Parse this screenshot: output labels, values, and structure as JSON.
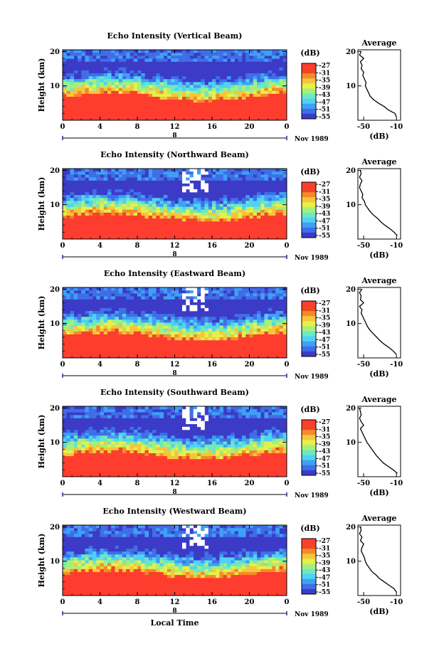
{
  "figure": {
    "xlabel": "Local Time",
    "date_label": "Nov 1989",
    "ylabel": "Height (km)",
    "colorbar_unit": "(dB)",
    "average_title": "Average",
    "average_xlabel": "(dB)",
    "strip_label": "8",
    "colormap": [
      "#3b3bc8",
      "#3f6ee6",
      "#3fa0f5",
      "#4fd2f5",
      "#6ee8c0",
      "#a6f07a",
      "#e6f04a",
      "#f5c63b",
      "#f58a2a",
      "#f04526",
      "#ff3d2e"
    ]
  },
  "chart_data": [
    {
      "type": "heatmap",
      "title": "Echo Intensity (Vertical Beam)",
      "x_ticks": [
        "0",
        "4",
        "8",
        "12",
        "16",
        "20",
        "0"
      ],
      "xlim": [
        0,
        24
      ],
      "y_ticks": [
        "20",
        "10"
      ],
      "ylim": [
        0,
        20.5
      ],
      "colorbar_ticks": [
        "-27",
        "-31",
        "-35",
        "-39",
        "-43",
        "-47",
        "-51",
        "-55"
      ],
      "colorbar_range": [
        -55,
        -27
      ],
      "avg_ticks": [
        "-50",
        "-10"
      ],
      "avg_xlim": [
        -57,
        -5
      ],
      "profile": {
        "heights": [
          1,
          2,
          3,
          4,
          5,
          6,
          7,
          8,
          9,
          10,
          11,
          12,
          13,
          14,
          15,
          16,
          17,
          18,
          19,
          20
        ],
        "values": [
          -10,
          -12,
          -20,
          -25,
          -32,
          -38,
          -42,
          -44,
          -46,
          -48,
          -47,
          -49,
          -51,
          -50,
          -53,
          -52,
          -54,
          -50,
          -55,
          -53
        ]
      }
    },
    {
      "type": "heatmap",
      "title": "Echo Intensity (Northward Beam)",
      "x_ticks": [
        "0",
        "4",
        "8",
        "12",
        "16",
        "20",
        "0"
      ],
      "xlim": [
        0,
        24
      ],
      "y_ticks": [
        "20",
        "10"
      ],
      "ylim": [
        0,
        20.5
      ],
      "colorbar_ticks": [
        "-27",
        "-31",
        "-35",
        "-39",
        "-43",
        "-47",
        "-51",
        "-55"
      ],
      "colorbar_range": [
        -55,
        -27
      ],
      "avg_ticks": [
        "-50",
        "-10"
      ],
      "avg_xlim": [
        -57,
        -5
      ],
      "profile": {
        "heights": [
          1,
          2,
          3,
          4,
          5,
          6,
          7,
          8,
          9,
          10,
          11,
          12,
          13,
          14,
          15,
          16,
          17,
          18,
          19,
          20
        ],
        "values": [
          -9,
          -13,
          -18,
          -24,
          -29,
          -33,
          -38,
          -42,
          -45,
          -48,
          -49,
          -52,
          -51,
          -53,
          -55,
          -54,
          -52,
          -55,
          -53,
          -54
        ]
      }
    },
    {
      "type": "heatmap",
      "title": "Echo Intensity (Eastward Beam)",
      "x_ticks": [
        "0",
        "4",
        "8",
        "12",
        "16",
        "20",
        "0"
      ],
      "xlim": [
        0,
        24
      ],
      "y_ticks": [
        "20",
        "10"
      ],
      "ylim": [
        0,
        20.5
      ],
      "colorbar_ticks": [
        "-27",
        "-31",
        "-35",
        "-39",
        "-43",
        "-47",
        "-51",
        "-55"
      ],
      "colorbar_range": [
        -55,
        -27
      ],
      "avg_ticks": [
        "-50",
        "-10"
      ],
      "avg_xlim": [
        -57,
        -5
      ],
      "profile": {
        "heights": [
          1,
          2,
          3,
          4,
          5,
          6,
          7,
          8,
          9,
          10,
          11,
          12,
          13,
          14,
          15,
          16,
          17,
          18,
          19,
          20
        ],
        "values": [
          -10,
          -14,
          -19,
          -25,
          -30,
          -34,
          -38,
          -42,
          -45,
          -47,
          -49,
          -51,
          -53,
          -52,
          -55,
          -50,
          -54,
          -53,
          -55,
          -52
        ]
      }
    },
    {
      "type": "heatmap",
      "title": "Echo Intensity (Southward Beam)",
      "x_ticks": [
        "0",
        "4",
        "8",
        "12",
        "16",
        "20",
        "0"
      ],
      "xlim": [
        0,
        24
      ],
      "y_ticks": [
        "20",
        "10"
      ],
      "ylim": [
        0,
        20.5
      ],
      "colorbar_ticks": [
        "-27",
        "-31",
        "-35",
        "-39",
        "-43",
        "-47",
        "-51",
        "-55"
      ],
      "colorbar_range": [
        -55,
        -27
      ],
      "avg_ticks": [
        "-50",
        "-10"
      ],
      "avg_xlim": [
        -57,
        -5
      ],
      "profile": {
        "heights": [
          1,
          2,
          3,
          4,
          5,
          6,
          7,
          8,
          9,
          10,
          11,
          12,
          13,
          14,
          15,
          16,
          17,
          18,
          19,
          20
        ],
        "values": [
          -9,
          -14,
          -20,
          -26,
          -30,
          -34,
          -37,
          -40,
          -43,
          -46,
          -48,
          -50,
          -52,
          -54,
          -50,
          -53,
          -55,
          -53,
          -54,
          -55
        ]
      }
    },
    {
      "type": "heatmap",
      "title": "Echo Intensity (Westward Beam)",
      "x_ticks": [
        "0",
        "4",
        "8",
        "12",
        "16",
        "20",
        "0"
      ],
      "xlim": [
        0,
        24
      ],
      "y_ticks": [
        "20",
        "10"
      ],
      "ylim": [
        0,
        20.5
      ],
      "colorbar_ticks": [
        "-27",
        "-31",
        "-35",
        "-39",
        "-43",
        "-47",
        "-51",
        "-55"
      ],
      "colorbar_range": [
        -55,
        -27
      ],
      "avg_ticks": [
        "-50",
        "-10"
      ],
      "avg_xlim": [
        -57,
        -5
      ],
      "profile": {
        "heights": [
          1,
          2,
          3,
          4,
          5,
          6,
          7,
          8,
          9,
          10,
          11,
          12,
          13,
          14,
          15,
          16,
          17,
          18,
          19,
          20
        ],
        "values": [
          -10,
          -13,
          -19,
          -25,
          -31,
          -35,
          -40,
          -43,
          -46,
          -48,
          -49,
          -51,
          -53,
          -52,
          -50,
          -54,
          -52,
          -55,
          -53,
          -54
        ]
      }
    }
  ]
}
